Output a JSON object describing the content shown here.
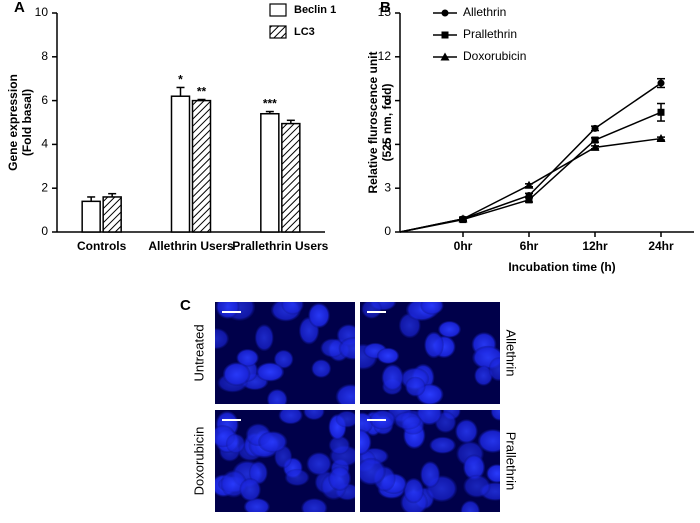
{
  "chart_data": [
    {
      "type": "bar",
      "panel": "A",
      "y_label": [
        "Gene expression",
        "(Fold basal)"
      ],
      "categories": [
        "Controls",
        "Allethrin Users",
        "Prallethrin Users"
      ],
      "series": [
        {
          "name": "Beclin 1",
          "color": "#ffffff",
          "hatch": false,
          "values": [
            1.4,
            6.2,
            5.4
          ],
          "errors": [
            0.2,
            0.4,
            0.1
          ],
          "significance": [
            null,
            "*",
            "***"
          ]
        },
        {
          "name": "LC3",
          "color": "#ffffff",
          "hatch": true,
          "values": [
            1.6,
            6.0,
            4.95
          ],
          "errors": [
            0.15,
            0.05,
            0.15
          ],
          "significance": [
            null,
            "**",
            null
          ]
        }
      ],
      "ylim": [
        0,
        10
      ],
      "yticks": [
        0,
        2,
        4,
        6,
        8,
        10
      ],
      "legend": "top-right"
    },
    {
      "type": "line",
      "panel": "B",
      "y_label": [
        "Relative fluroscence unit",
        "(525 nm, fold)"
      ],
      "x_label": "Incubation time (h)",
      "categories": [
        "0hr",
        "6hr",
        "12hr",
        "24hr"
      ],
      "series": [
        {
          "name": "Allethrin",
          "color": "#000000",
          "marker": "circle",
          "values": [
            0.9,
            2.5,
            7.1,
            10.2
          ],
          "errors": [
            0.1,
            0.15,
            0.15,
            0.3
          ]
        },
        {
          "name": "Prallethrin",
          "color": "#000000",
          "marker": "square",
          "values": [
            0.85,
            2.2,
            6.3,
            8.2
          ],
          "errors": [
            0.1,
            0.15,
            0.15,
            0.6
          ]
        },
        {
          "name": "Doxorubicin",
          "color": "#000000",
          "marker": "triangle",
          "values": [
            0.9,
            3.2,
            5.8,
            6.4
          ],
          "errors": [
            0.1,
            0.1,
            0.1,
            0.1
          ]
        }
      ],
      "ylim": [
        0,
        15
      ],
      "yticks": [
        0,
        3,
        6,
        9,
        12,
        15
      ],
      "legend": "top-left"
    }
  ],
  "images": {
    "panel": "C",
    "labels": [
      "Untreated",
      "Allethrin",
      "Doxorubicin",
      "Prallethrin"
    ]
  }
}
